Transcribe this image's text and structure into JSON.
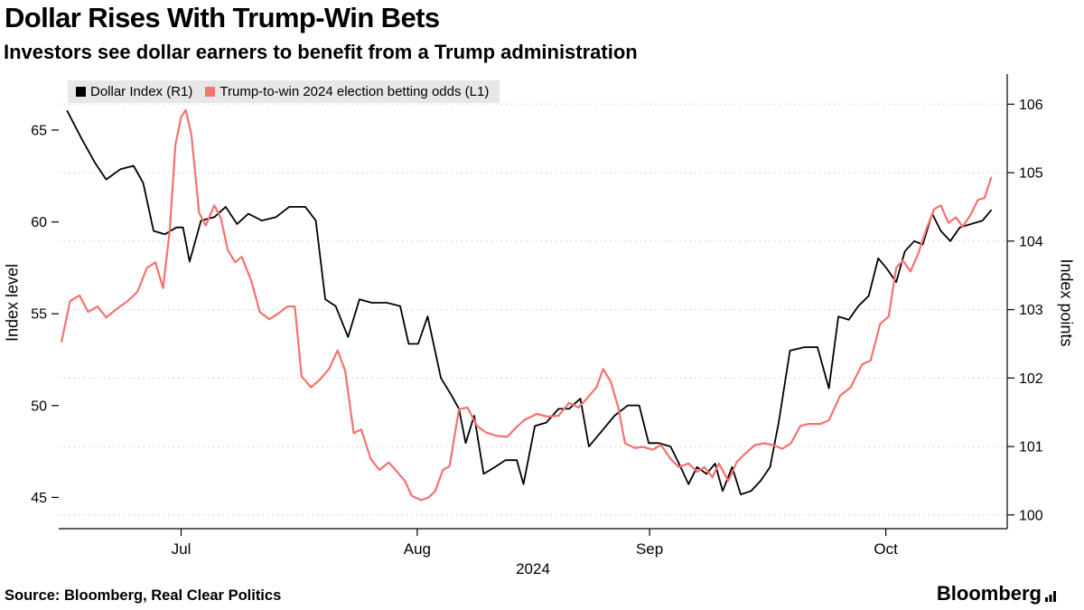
{
  "header": {
    "title": "Dollar Rises With Trump-Win Bets",
    "subtitle": "Investors see dollar earners to benefit from a Trump administration"
  },
  "footer": {
    "source": "Source: Bloomberg, Real Clear Politics",
    "brand": "Bloomberg"
  },
  "chart_data": {
    "type": "line",
    "title": "Dollar Rises With Trump-Win Bets",
    "subtitle": "Investors see dollar earners to benefit from a Trump administration",
    "grid": "dotted-horizontal",
    "legend_position": "top-left-inside",
    "x_axis": {
      "tick_labels": [
        "Jul",
        "Aug",
        "Sep",
        "Oct"
      ],
      "tick_pct": [
        12.9,
        37.8,
        62.3,
        87.2
      ],
      "year_label": "2024"
    },
    "left_axis": {
      "label": "Index level",
      "ticks": [
        45,
        50,
        55,
        60,
        65
      ],
      "range": [
        43.3,
        67.9
      ]
    },
    "right_axis": {
      "label": "Index points",
      "ticks": [
        100,
        101,
        102,
        103,
        104,
        105,
        106
      ],
      "range": [
        99.8,
        106.4
      ]
    },
    "series": [
      {
        "name": "Dollar Index (R1)",
        "axis": "right",
        "color": "#000000",
        "points": [
          [
            0.9,
            105.9
          ],
          [
            2.4,
            105.5
          ],
          [
            3.8,
            105.15
          ],
          [
            5.0,
            104.9
          ],
          [
            6.5,
            105.05
          ],
          [
            7.9,
            105.1
          ],
          [
            8.9,
            104.85
          ],
          [
            10.0,
            104.15
          ],
          [
            11.2,
            104.1
          ],
          [
            12.4,
            104.2
          ],
          [
            13.1,
            104.2
          ],
          [
            13.8,
            103.7
          ],
          [
            15.0,
            104.3
          ],
          [
            16.4,
            104.35
          ],
          [
            17.6,
            104.5
          ],
          [
            18.8,
            104.25
          ],
          [
            20.0,
            104.4
          ],
          [
            21.4,
            104.3
          ],
          [
            22.9,
            104.35
          ],
          [
            24.3,
            104.5
          ],
          [
            26.0,
            104.5
          ],
          [
            27.1,
            104.3
          ],
          [
            28.1,
            103.15
          ],
          [
            29.2,
            103.05
          ],
          [
            30.5,
            102.6
          ],
          [
            31.7,
            103.15
          ],
          [
            33.0,
            103.1
          ],
          [
            34.6,
            103.1
          ],
          [
            36.0,
            103.05
          ],
          [
            36.9,
            102.5
          ],
          [
            37.9,
            102.5
          ],
          [
            38.9,
            102.9
          ],
          [
            40.3,
            102.0
          ],
          [
            41.4,
            101.75
          ],
          [
            42.2,
            101.55
          ],
          [
            42.9,
            101.05
          ],
          [
            43.8,
            101.45
          ],
          [
            44.8,
            100.6
          ],
          [
            46.0,
            100.7
          ],
          [
            47.1,
            100.8
          ],
          [
            48.3,
            100.8
          ],
          [
            49.0,
            100.45
          ],
          [
            50.2,
            101.3
          ],
          [
            51.4,
            101.35
          ],
          [
            52.7,
            101.55
          ],
          [
            53.8,
            101.55
          ],
          [
            55.0,
            101.7
          ],
          [
            55.9,
            101.0
          ],
          [
            57.1,
            101.2
          ],
          [
            58.6,
            101.45
          ],
          [
            60.0,
            101.6
          ],
          [
            61.2,
            101.6
          ],
          [
            62.2,
            101.05
          ],
          [
            63.3,
            101.05
          ],
          [
            64.5,
            101.0
          ],
          [
            65.4,
            100.75
          ],
          [
            66.4,
            100.45
          ],
          [
            67.3,
            100.7
          ],
          [
            68.3,
            100.6
          ],
          [
            69.2,
            100.75
          ],
          [
            70.0,
            100.35
          ],
          [
            71.0,
            100.7
          ],
          [
            71.9,
            100.3
          ],
          [
            73.0,
            100.35
          ],
          [
            74.0,
            100.5
          ],
          [
            75.0,
            100.7
          ],
          [
            75.9,
            101.35
          ],
          [
            77.1,
            102.4
          ],
          [
            78.6,
            102.45
          ],
          [
            80.0,
            102.45
          ],
          [
            81.2,
            101.85
          ],
          [
            82.2,
            102.9
          ],
          [
            83.3,
            102.85
          ],
          [
            84.3,
            103.05
          ],
          [
            85.4,
            103.2
          ],
          [
            86.4,
            103.75
          ],
          [
            87.3,
            103.6
          ],
          [
            88.3,
            103.4
          ],
          [
            89.2,
            103.85
          ],
          [
            90.2,
            104.0
          ],
          [
            91.1,
            103.95
          ],
          [
            92.1,
            104.4
          ],
          [
            93.0,
            104.15
          ],
          [
            94.0,
            104.0
          ],
          [
            95.0,
            104.2
          ],
          [
            96.2,
            104.25
          ],
          [
            97.4,
            104.3
          ],
          [
            98.3,
            104.45
          ]
        ]
      },
      {
        "name": "Trump-to-win 2024 election betting odds (L1)",
        "axis": "left",
        "color": "#f5726e",
        "points": [
          [
            0.3,
            53.5
          ],
          [
            1.2,
            55.7
          ],
          [
            2.2,
            56.0
          ],
          [
            3.1,
            55.1
          ],
          [
            4.1,
            55.4
          ],
          [
            5.0,
            54.8
          ],
          [
            6.2,
            55.3
          ],
          [
            7.3,
            55.7
          ],
          [
            8.3,
            56.2
          ],
          [
            9.3,
            57.5
          ],
          [
            10.2,
            57.8
          ],
          [
            11.0,
            56.4
          ],
          [
            11.7,
            59.5
          ],
          [
            12.3,
            64.2
          ],
          [
            12.9,
            65.7
          ],
          [
            13.4,
            66.1
          ],
          [
            14.0,
            64.7
          ],
          [
            14.8,
            60.5
          ],
          [
            15.5,
            59.8
          ],
          [
            16.4,
            60.9
          ],
          [
            17.1,
            60.2
          ],
          [
            17.8,
            58.5
          ],
          [
            18.6,
            57.8
          ],
          [
            19.3,
            58.1
          ],
          [
            20.3,
            56.8
          ],
          [
            21.2,
            55.1
          ],
          [
            22.2,
            54.7
          ],
          [
            23.1,
            55.0
          ],
          [
            24.1,
            55.4
          ],
          [
            24.9,
            55.4
          ],
          [
            25.6,
            51.6
          ],
          [
            26.6,
            51.0
          ],
          [
            27.5,
            51.4
          ],
          [
            28.5,
            52.0
          ],
          [
            29.4,
            53.0
          ],
          [
            30.2,
            51.9
          ],
          [
            31.1,
            48.5
          ],
          [
            31.9,
            48.7
          ],
          [
            32.9,
            47.1
          ],
          [
            33.8,
            46.5
          ],
          [
            34.8,
            46.9
          ],
          [
            35.5,
            46.5
          ],
          [
            36.5,
            45.9
          ],
          [
            37.2,
            45.1
          ],
          [
            38.2,
            44.85
          ],
          [
            39.0,
            45.0
          ],
          [
            39.7,
            45.35
          ],
          [
            40.5,
            46.5
          ],
          [
            41.2,
            46.7
          ],
          [
            42.2,
            49.8
          ],
          [
            43.1,
            49.9
          ],
          [
            44.1,
            48.9
          ],
          [
            45.0,
            48.55
          ],
          [
            46.2,
            48.35
          ],
          [
            47.3,
            48.3
          ],
          [
            48.3,
            48.85
          ],
          [
            49.2,
            49.25
          ],
          [
            50.4,
            49.55
          ],
          [
            51.5,
            49.4
          ],
          [
            52.7,
            49.45
          ],
          [
            53.8,
            50.15
          ],
          [
            54.8,
            49.9
          ],
          [
            55.7,
            50.4
          ],
          [
            56.7,
            51.0
          ],
          [
            57.4,
            52.0
          ],
          [
            58.2,
            51.3
          ],
          [
            59.0,
            49.9
          ],
          [
            59.7,
            47.95
          ],
          [
            60.7,
            47.7
          ],
          [
            61.6,
            47.75
          ],
          [
            62.6,
            47.6
          ],
          [
            63.5,
            47.85
          ],
          [
            64.5,
            47.1
          ],
          [
            65.4,
            46.65
          ],
          [
            66.4,
            46.85
          ],
          [
            67.3,
            46.4
          ],
          [
            68.1,
            46.65
          ],
          [
            68.9,
            46.1
          ],
          [
            69.6,
            46.85
          ],
          [
            70.6,
            45.9
          ],
          [
            71.5,
            46.95
          ],
          [
            72.5,
            47.45
          ],
          [
            73.4,
            47.85
          ],
          [
            74.4,
            47.95
          ],
          [
            75.3,
            47.85
          ],
          [
            76.3,
            47.65
          ],
          [
            77.2,
            47.95
          ],
          [
            78.2,
            48.9
          ],
          [
            79.1,
            49.0
          ],
          [
            80.3,
            49.0
          ],
          [
            81.2,
            49.2
          ],
          [
            82.4,
            50.55
          ],
          [
            83.5,
            51.0
          ],
          [
            84.7,
            52.25
          ],
          [
            85.6,
            52.45
          ],
          [
            86.6,
            54.45
          ],
          [
            87.5,
            54.85
          ],
          [
            88.3,
            57.5
          ],
          [
            89.0,
            57.9
          ],
          [
            89.8,
            57.3
          ],
          [
            90.6,
            58.25
          ],
          [
            91.5,
            59.65
          ],
          [
            92.3,
            60.7
          ],
          [
            93.0,
            60.9
          ],
          [
            93.8,
            59.95
          ],
          [
            94.6,
            60.25
          ],
          [
            95.3,
            59.75
          ],
          [
            96.1,
            60.35
          ],
          [
            96.9,
            61.2
          ],
          [
            97.6,
            61.3
          ],
          [
            98.3,
            62.4
          ]
        ]
      }
    ]
  }
}
